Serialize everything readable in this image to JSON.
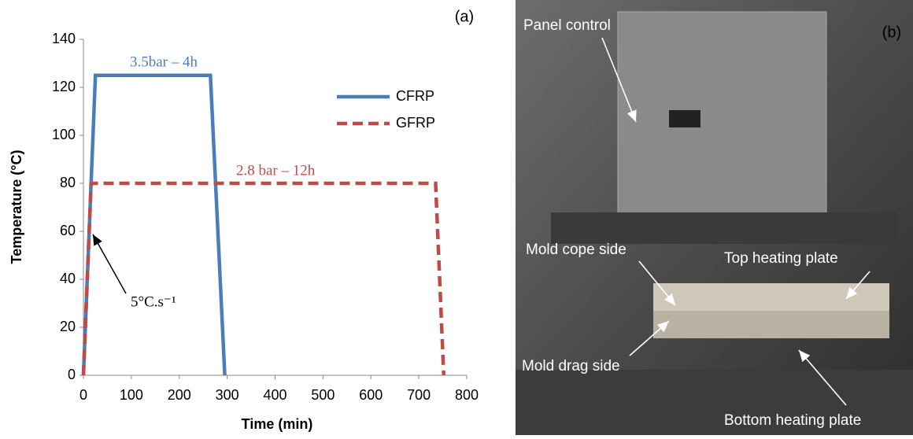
{
  "chart_data": {
    "type": "line",
    "panel_label": "(a)",
    "x_label": "Time (min)",
    "y_label": "Temperature (°C)",
    "xlim": [
      0,
      800
    ],
    "xticks": [
      0,
      100,
      200,
      300,
      400,
      500,
      600,
      700,
      800
    ],
    "ylim": [
      0,
      140
    ],
    "yticks": [
      0,
      20,
      40,
      60,
      80,
      100,
      120,
      140
    ],
    "grid": false,
    "legend": "upper right",
    "series": [
      {
        "name": "CFRP",
        "color": "#4a7ebb",
        "dash": false,
        "x": [
          0,
          25,
          265,
          295
        ],
        "values": [
          0,
          125,
          125,
          0
        ]
      },
      {
        "name": "GFRP",
        "color": "#be4b48",
        "dash": true,
        "x": [
          0,
          16,
          735,
          752
        ],
        "values": [
          0,
          80,
          80,
          0
        ]
      }
    ],
    "annotations": [
      {
        "text": "3.5bar – 4h",
        "color": "#4a7ebb"
      },
      {
        "text": "2.8 bar – 12h",
        "color": "#be4b48"
      },
      {
        "text": "5°C.s⁻¹",
        "color": "#000000"
      }
    ]
  },
  "photo": {
    "panel_label": "(b)",
    "labels": [
      "Panel control",
      "Mold cope side",
      "Top heating plate",
      "Mold drag side",
      "Bottom heating plate"
    ]
  }
}
